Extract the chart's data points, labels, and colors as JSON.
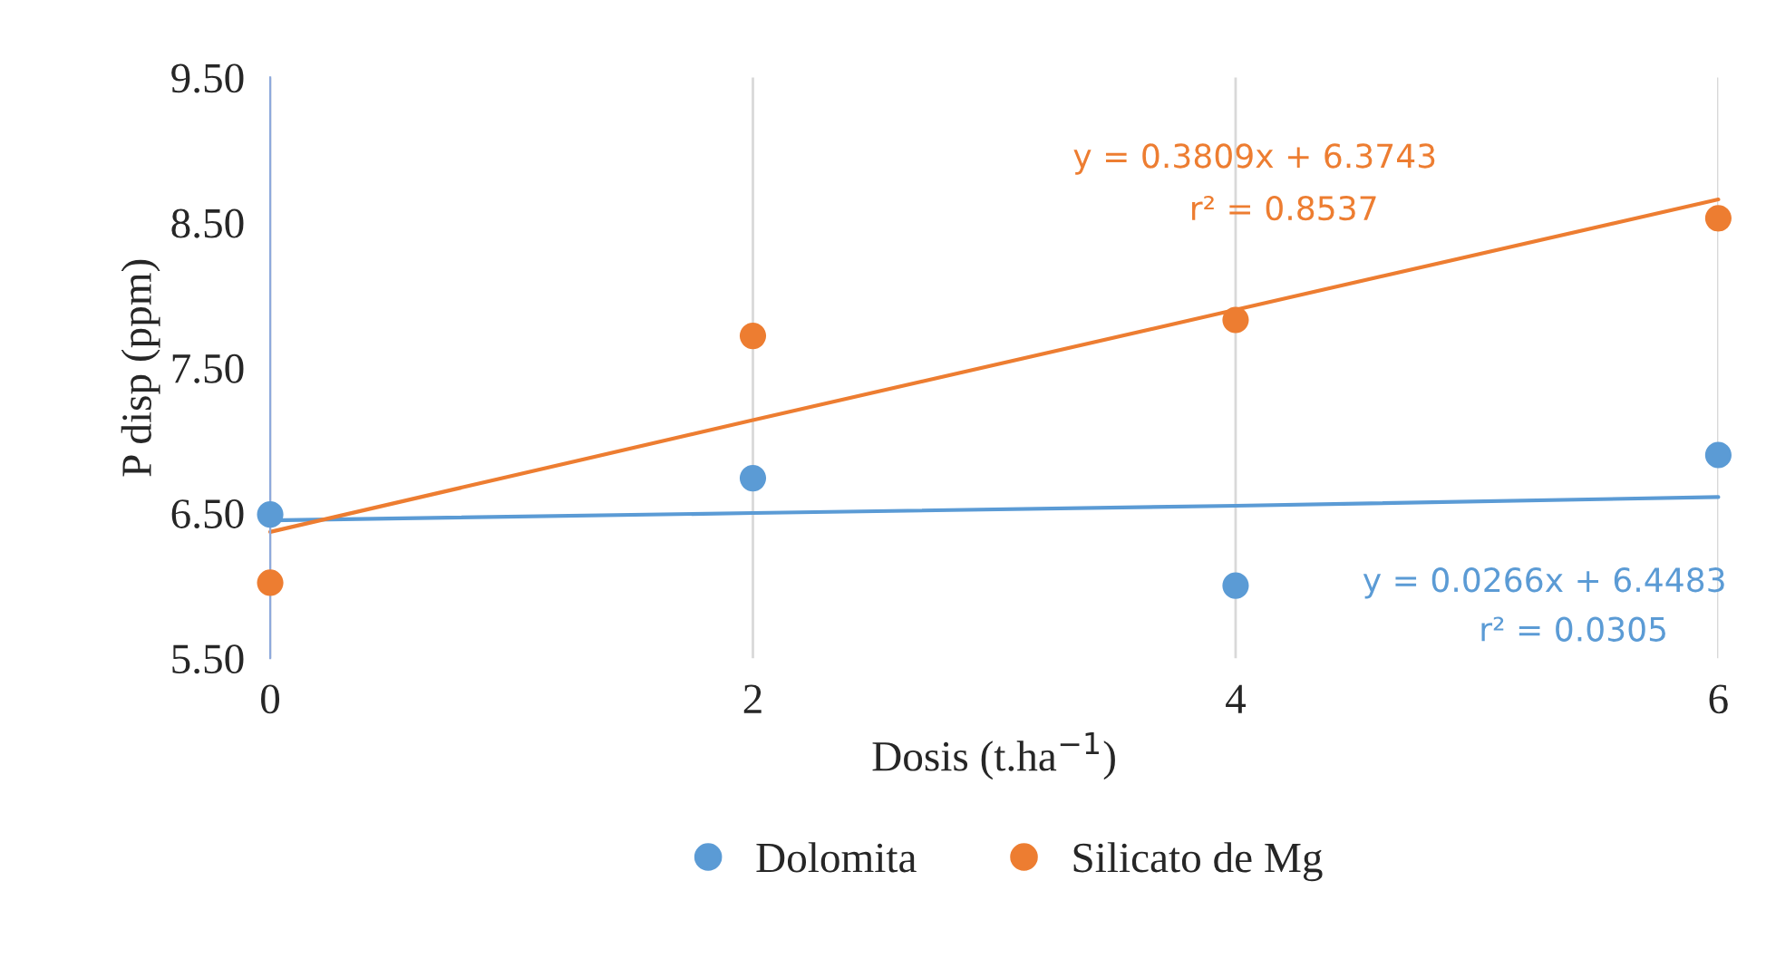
{
  "chart_data": {
    "type": "scatter",
    "xlabel": "Dosis (t.ha$^{−1}$)",
    "ylabel": "P disp (ppm)",
    "x": [
      0,
      2,
      4,
      6
    ],
    "series": [
      {
        "name": "Dolomita",
        "color": "#5b9bd5",
        "values": [
          6.49,
          6.74,
          6.0,
          6.9
        ]
      },
      {
        "name": "Silicato de Mg",
        "color": "#ed7d31",
        "values": [
          6.02,
          7.72,
          7.83,
          8.53
        ]
      },
      {
        "type": "line",
        "marker": "none",
        "color": "#5b9bd5",
        "values": [
          6.45,
          6.5,
          6.55,
          6.61
        ]
      },
      {
        "type": "line",
        "marker": "none",
        "color": "#ed7d31",
        "values": [
          6.37,
          7.14,
          7.9,
          8.66
        ]
      }
    ],
    "annotations": [
      "y = 0.3809x + 6.3743",
      "r² = 0.8537",
      "y = 0.0266x + 6.4483",
      "r² = 0.0305"
    ],
    "xlim": [
      0,
      6
    ],
    "xticks": [
      0,
      2,
      4,
      6
    ],
    "ylim": [
      5.5,
      9.5
    ],
    "yticks": [
      {
        "value": 5.5,
        "label": "5.50"
      },
      {
        "value": 6.5,
        "label": "6.50"
      },
      {
        "value": 7.5,
        "label": "7.50"
      },
      {
        "value": 8.5,
        "label": "8.50"
      },
      {
        "value": 9.5,
        "label": "9.50"
      }
    ],
    "grid": "x",
    "legend": "bottom",
    "marker": "circle",
    "line_style": "solid"
  }
}
